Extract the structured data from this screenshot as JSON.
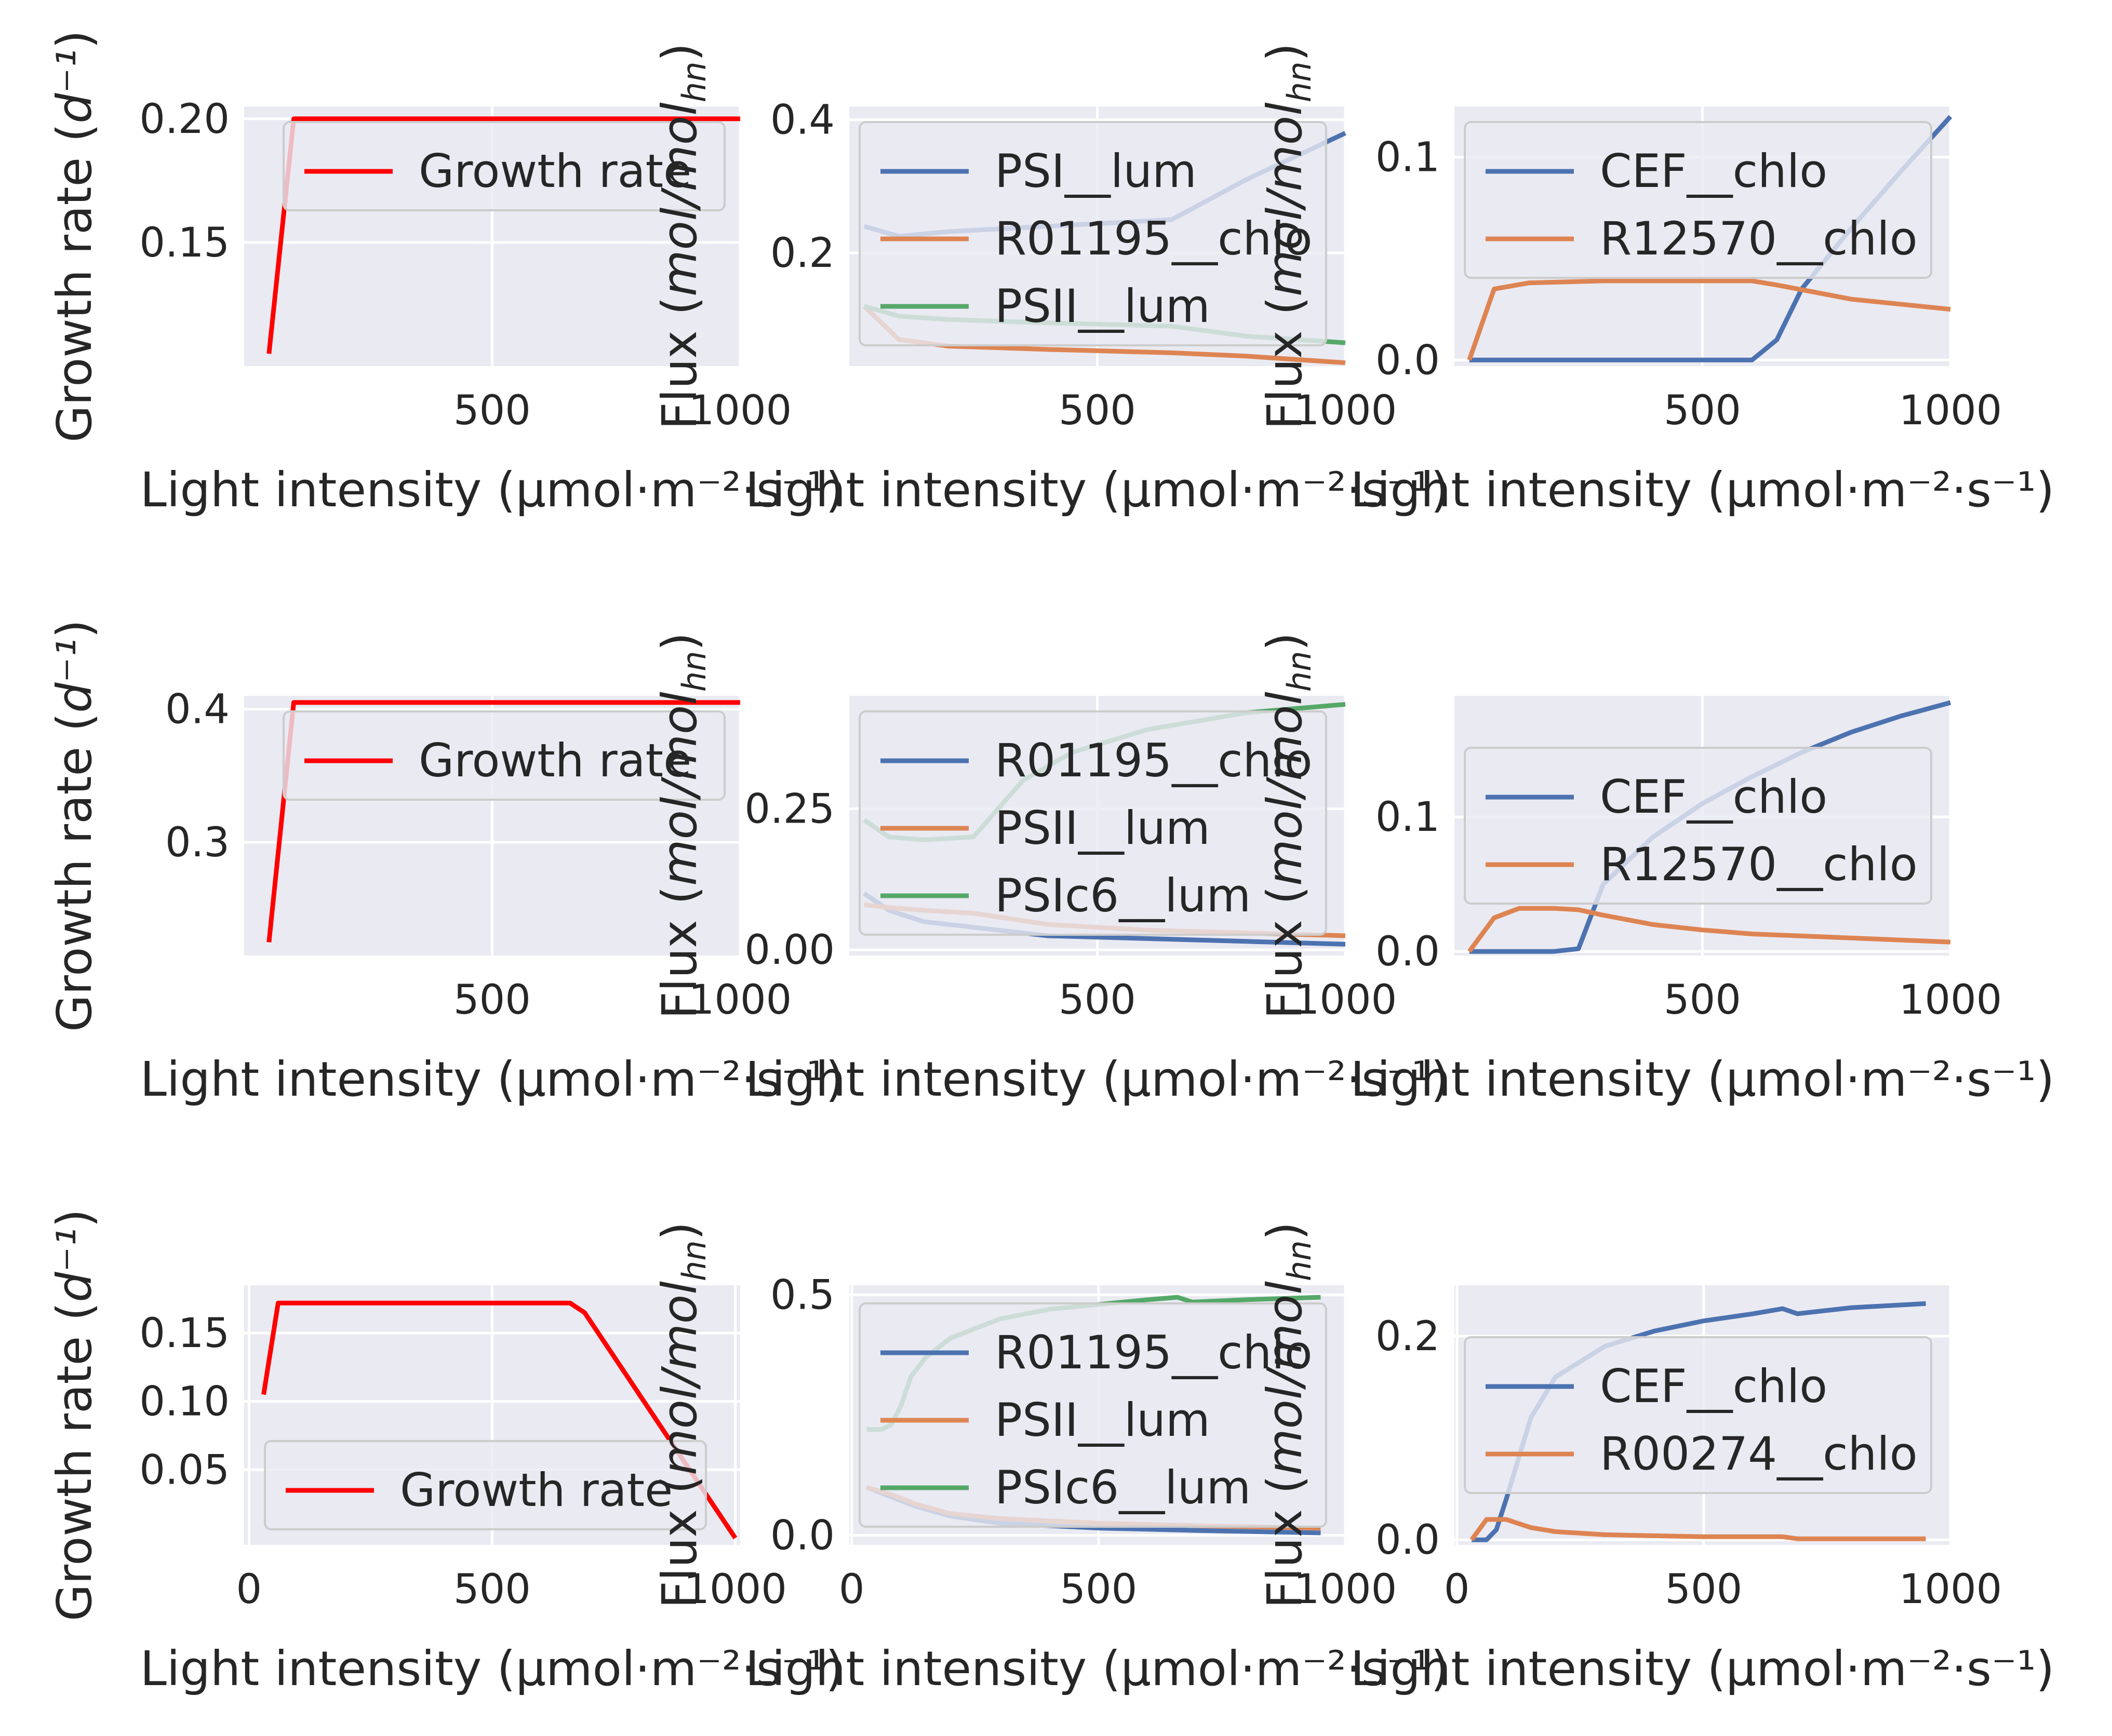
{
  "style": {
    "panel_bg": "#eaeaf2",
    "grid": "#ffffff",
    "text": "#262626"
  },
  "chart_data": [
    {
      "type": "line",
      "xlabel": "Light intensity (μmol·m⁻²·s⁻¹)",
      "ylabel": "Growth rate (d⁻¹)",
      "xlim": [
        0,
        1000
      ],
      "ylim": [
        0.1,
        0.205
      ],
      "xticks": [
        500,
        1000
      ],
      "yticks": [
        0.15,
        0.2
      ],
      "xtick_labels": [
        "500",
        "1000"
      ],
      "ytick_labels": [
        "0.15",
        "0.20"
      ],
      "legend_loc": "upper-right",
      "series": [
        {
          "name": "Growth rate",
          "color": "#ff0000",
          "x": [
            50,
            100,
            1000
          ],
          "y": [
            0.105,
            0.2,
            0.2
          ]
        }
      ]
    },
    {
      "type": "line",
      "xlabel": "Light intensity (μmol·m⁻²·s⁻¹)",
      "ylabel": "Flux (mol/mol_hn)",
      "xlim": [
        0,
        1000
      ],
      "ylim": [
        0.03,
        0.42
      ],
      "xticks": [
        500,
        1000
      ],
      "yticks": [
        0.2,
        0.4
      ],
      "xtick_labels": [
        "500",
        "1000"
      ],
      "ytick_labels": [
        "0.2",
        "0.4"
      ],
      "legend_loc": "upper-left",
      "series": [
        {
          "name": "PSI__lum",
          "color": "#4c72b0",
          "x": [
            30,
            100,
            200,
            400,
            650,
            800,
            1000
          ],
          "y": [
            0.24,
            0.225,
            0.232,
            0.24,
            0.25,
            0.31,
            0.38
          ]
        },
        {
          "name": "R01195__chlo",
          "color": "#dd8452",
          "x": [
            30,
            100,
            200,
            400,
            650,
            800,
            1000
          ],
          "y": [
            0.12,
            0.07,
            0.06,
            0.055,
            0.05,
            0.045,
            0.035
          ]
        },
        {
          "name": "PSII__lum",
          "color": "#55a868",
          "x": [
            30,
            100,
            200,
            400,
            650,
            800,
            1000
          ],
          "y": [
            0.12,
            0.105,
            0.1,
            0.095,
            0.09,
            0.075,
            0.065
          ]
        }
      ]
    },
    {
      "type": "line",
      "xlabel": "Light intensity (μmol·m⁻²·s⁻¹)",
      "ylabel": "Flux (mol/mol_hn)",
      "xlim": [
        0,
        1000
      ],
      "ylim": [
        -0.003,
        0.125
      ],
      "xticks": [
        500,
        1000
      ],
      "yticks": [
        0.0,
        0.1
      ],
      "xtick_labels": [
        "500",
        "1000"
      ],
      "ytick_labels": [
        "0.0",
        "0.1"
      ],
      "legend_loc": "upper-left",
      "series": [
        {
          "name": "CEF__chlo",
          "color": "#4c72b0",
          "x": [
            30,
            100,
            200,
            400,
            600,
            650,
            700,
            800,
            900,
            1000
          ],
          "y": [
            0,
            0,
            0,
            0,
            0,
            0.01,
            0.035,
            0.065,
            0.093,
            0.12
          ]
        },
        {
          "name": "R12570__chlo",
          "color": "#dd8452",
          "x": [
            30,
            80,
            150,
            300,
            500,
            600,
            650,
            800,
            1000
          ],
          "y": [
            0,
            0.035,
            0.038,
            0.039,
            0.039,
            0.039,
            0.037,
            0.03,
            0.025
          ]
        }
      ]
    },
    {
      "type": "line",
      "xlabel": "Light intensity (μmol·m⁻²·s⁻¹)",
      "ylabel": "Growth rate (d⁻¹)",
      "xlim": [
        0,
        1000
      ],
      "ylim": [
        0.215,
        0.41
      ],
      "xticks": [
        500,
        1000
      ],
      "yticks": [
        0.3,
        0.4
      ],
      "xtick_labels": [
        "500",
        "1000"
      ],
      "ytick_labels": [
        "0.3",
        "0.4"
      ],
      "legend_loc": "upper-right",
      "series": [
        {
          "name": "Growth rate",
          "color": "#ff0000",
          "x": [
            50,
            100,
            1000
          ],
          "y": [
            0.225,
            0.405,
            0.405
          ]
        }
      ]
    },
    {
      "type": "line",
      "xlabel": "Light intensity (μmol·m⁻²·s⁻¹)",
      "ylabel": "Flux (mol/mol_hn)",
      "xlim": [
        0,
        1000
      ],
      "ylim": [
        -0.01,
        0.45
      ],
      "xticks": [
        500,
        1000
      ],
      "yticks": [
        0.0,
        0.25
      ],
      "xtick_labels": [
        "500",
        "1000"
      ],
      "ytick_labels": [
        "0.00",
        "0.25"
      ],
      "legend_loc": "upper-left",
      "series": [
        {
          "name": "R01195__chlo",
          "color": "#4c72b0",
          "x": [
            30,
            80,
            150,
            250,
            400,
            600,
            800,
            1000
          ],
          "y": [
            0.1,
            0.07,
            0.05,
            0.04,
            0.025,
            0.02,
            0.015,
            0.01
          ]
        },
        {
          "name": "PSII__lum",
          "color": "#dd8452",
          "x": [
            30,
            80,
            150,
            250,
            400,
            600,
            800,
            1000
          ],
          "y": [
            0.08,
            0.075,
            0.07,
            0.065,
            0.045,
            0.035,
            0.03,
            0.025
          ]
        },
        {
          "name": "PSIc6__lum",
          "color": "#55a868",
          "x": [
            30,
            80,
            150,
            250,
            350,
            450,
            600,
            800,
            1000
          ],
          "y": [
            0.23,
            0.2,
            0.195,
            0.2,
            0.3,
            0.35,
            0.39,
            0.42,
            0.435
          ]
        }
      ]
    },
    {
      "type": "line",
      "xlabel": "Light intensity (μmol·m⁻²·s⁻¹)",
      "ylabel": "Flux (mol/mol_hn)",
      "xlim": [
        0,
        1000
      ],
      "ylim": [
        -0.003,
        0.19
      ],
      "xticks": [
        500,
        1000
      ],
      "yticks": [
        0.0,
        0.1
      ],
      "xtick_labels": [
        "500",
        "1000"
      ],
      "ytick_labels": [
        "0.0",
        "0.1"
      ],
      "legend_loc": "center-left",
      "series": [
        {
          "name": "CEF__chlo",
          "color": "#4c72b0",
          "x": [
            30,
            100,
            200,
            250,
            300,
            400,
            500,
            600,
            700,
            800,
            900,
            1000
          ],
          "y": [
            0,
            0,
            0,
            0.002,
            0.05,
            0.085,
            0.11,
            0.13,
            0.148,
            0.163,
            0.175,
            0.185
          ]
        },
        {
          "name": "R12570__chlo",
          "color": "#dd8452",
          "x": [
            30,
            80,
            130,
            200,
            250,
            300,
            400,
            500,
            600,
            800,
            1000
          ],
          "y": [
            0,
            0.025,
            0.032,
            0.032,
            0.031,
            0.027,
            0.02,
            0.016,
            0.013,
            0.01,
            0.007
          ]
        }
      ]
    },
    {
      "type": "line",
      "xlabel": "Light intensity (μmol·m⁻²·s⁻¹)",
      "ylabel": "Growth rate (d⁻¹)",
      "xlim": [
        -10,
        1010
      ],
      "ylim": [
        -0.005,
        0.185
      ],
      "xticks": [
        0,
        500,
        1000
      ],
      "yticks": [
        0.05,
        0.1,
        0.15
      ],
      "xtick_labels": [
        "0",
        "500",
        "1000"
      ],
      "ytick_labels": [
        "0.05",
        "0.10",
        "0.15"
      ],
      "legend_loc": "lower-left",
      "series": [
        {
          "name": "Growth rate",
          "color": "#ff0000",
          "x": [
            30,
            60,
            660,
            690,
            1000
          ],
          "y": [
            0.105,
            0.172,
            0.172,
            0.165,
            0.0
          ]
        }
      ]
    },
    {
      "type": "line",
      "xlabel": "Light intensity (μmol·m⁻²·s⁻¹)",
      "ylabel": "Flux (mol/mol_hn)",
      "xlim": [
        -5,
        1000
      ],
      "ylim": [
        -0.02,
        0.52
      ],
      "xticks": [
        0,
        500,
        1000
      ],
      "yticks": [
        0.0,
        0.5
      ],
      "xtick_labels": [
        "0",
        "500",
        "1000"
      ],
      "ytick_labels": [
        "0.0",
        "0.5"
      ],
      "legend_loc": "center-left",
      "series": [
        {
          "name": "R01195__chlo",
          "color": "#4c72b0",
          "x": [
            30,
            80,
            130,
            200,
            300,
            500,
            700,
            950
          ],
          "y": [
            0.1,
            0.08,
            0.06,
            0.04,
            0.025,
            0.015,
            0.01,
            0.005
          ]
        },
        {
          "name": "PSII__lum",
          "color": "#dd8452",
          "x": [
            30,
            80,
            130,
            200,
            300,
            500,
            700,
            950
          ],
          "y": [
            0.1,
            0.085,
            0.065,
            0.045,
            0.035,
            0.025,
            0.02,
            0.015
          ]
        },
        {
          "name": "PSIc6__lum",
          "color": "#55a868",
          "x": [
            30,
            60,
            80,
            100,
            120,
            150,
            200,
            300,
            400,
            500,
            600,
            660,
            690,
            800,
            950
          ],
          "y": [
            0.22,
            0.22,
            0.23,
            0.27,
            0.33,
            0.37,
            0.41,
            0.45,
            0.47,
            0.48,
            0.49,
            0.495,
            0.485,
            0.49,
            0.495
          ]
        }
      ]
    },
    {
      "type": "line",
      "xlabel": "Light intensity (μmol·m⁻²·s⁻¹)",
      "ylabel": "Flux (mol/mol_hn)",
      "xlim": [
        -5,
        1000
      ],
      "ylim": [
        -0.005,
        0.25
      ],
      "xticks": [
        0,
        500,
        1000
      ],
      "yticks": [
        0.0,
        0.2
      ],
      "xtick_labels": [
        "0",
        "500",
        "1000"
      ],
      "ytick_labels": [
        "0.0",
        "0.2"
      ],
      "legend_loc": "center-left",
      "series": [
        {
          "name": "CEF__chlo",
          "color": "#4c72b0",
          "x": [
            30,
            60,
            80,
            100,
            150,
            200,
            300,
            400,
            500,
            600,
            660,
            690,
            800,
            950
          ],
          "y": [
            0,
            0,
            0.01,
            0.04,
            0.12,
            0.16,
            0.19,
            0.205,
            0.215,
            0.222,
            0.227,
            0.222,
            0.228,
            0.232
          ]
        },
        {
          "name": "R00274__chlo",
          "color": "#dd8452",
          "x": [
            30,
            60,
            100,
            150,
            200,
            300,
            400,
            500,
            660,
            690,
            800,
            950
          ],
          "y": [
            0,
            0.02,
            0.02,
            0.012,
            0.008,
            0.005,
            0.004,
            0.003,
            0.003,
            0.001,
            0.001,
            0.001
          ]
        }
      ]
    }
  ]
}
